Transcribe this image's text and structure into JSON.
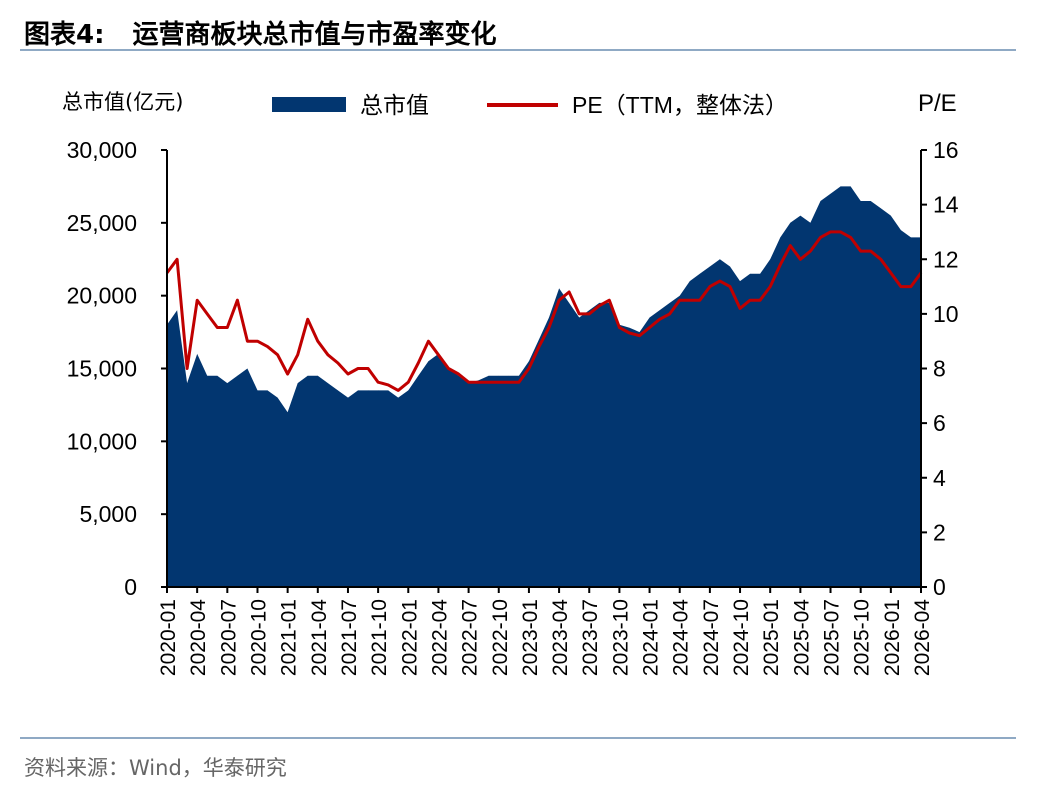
{
  "header": {
    "figure_label": "图表4:",
    "title": "运营商板块总市值与市盈率变化"
  },
  "footer": {
    "source": "资料来源：Wind，华泰研究"
  },
  "chart_data": {
    "type": "area+line",
    "title": "运营商板块总市值与市盈率变化",
    "left_axis": {
      "label": "总市值(亿元)",
      "range": [
        0,
        30000
      ],
      "ticks": [
        "0",
        "5,000",
        "10,000",
        "15,000",
        "20,000",
        "25,000",
        "30,000"
      ],
      "tick_values": [
        0,
        5000,
        10000,
        15000,
        20000,
        25000,
        30000
      ]
    },
    "right_axis": {
      "label": "P/E",
      "range": [
        0,
        16
      ],
      "ticks": [
        "0",
        "2",
        "4",
        "6",
        "8",
        "10",
        "12",
        "14",
        "16"
      ],
      "tick_values": [
        0,
        2,
        4,
        6,
        8,
        10,
        12,
        14,
        16
      ]
    },
    "x_ticks": [
      "2020-01",
      "2020-04",
      "2020-07",
      "2020-10",
      "2021-01",
      "2021-04",
      "2021-07",
      "2021-10",
      "2022-01",
      "2022-04",
      "2022-07",
      "2022-10",
      "2023-01",
      "2023-04",
      "2023-07",
      "2023-10",
      "2024-01",
      "2024-04",
      "2024-07",
      "2024-10",
      "2025-01",
      "2025-04",
      "2025-07",
      "2025-10",
      "2026-01",
      "2026-04"
    ],
    "x_start": "2020-01",
    "x_end": "2026-04",
    "x_step": "month",
    "legend": {
      "position": "top",
      "entries": [
        "总市值",
        "PE（TTM，整体法）"
      ]
    },
    "colors": {
      "market_cap": "#023670",
      "pe": "#C00000"
    },
    "series": [
      {
        "name": "总市值",
        "axis": "left",
        "type": "area",
        "values": [
          18000,
          19000,
          14000,
          16000,
          14500,
          14500,
          14000,
          14500,
          15000,
          13500,
          13500,
          13000,
          12000,
          14000,
          14500,
          14500,
          14000,
          13500,
          13000,
          13500,
          13500,
          13500,
          13500,
          13000,
          13500,
          14500,
          15500,
          16000,
          15000,
          14500,
          14000,
          14200,
          14500,
          14500,
          14500,
          14500,
          15500,
          17000,
          18500,
          20500,
          19500,
          18500,
          19000,
          19500,
          19500,
          18000,
          17800,
          17500,
          18500,
          19000,
          19500,
          20000,
          21000,
          21500,
          22000,
          22500,
          22000,
          21000,
          21500,
          21500,
          22500,
          24000,
          25000,
          25500,
          25000,
          26500,
          27000,
          27500,
          27500,
          26500,
          26500,
          26000,
          25500,
          24500,
          24000,
          24000
        ]
      },
      {
        "name": "PE（TTM，整体法）",
        "axis": "right",
        "type": "line",
        "values": [
          11.5,
          12,
          8.0,
          10.5,
          10,
          9.5,
          9.5,
          10.5,
          9.0,
          9.0,
          8.8,
          8.5,
          7.8,
          8.5,
          9.8,
          9.0,
          8.5,
          8.2,
          7.8,
          8.0,
          8.0,
          7.5,
          7.4,
          7.2,
          7.5,
          8.2,
          9.0,
          8.5,
          8.0,
          7.8,
          7.5,
          7.5,
          7.5,
          7.5,
          7.5,
          7.5,
          8.0,
          8.8,
          9.5,
          10.5,
          10.8,
          10.0,
          10.0,
          10.3,
          10.5,
          9.5,
          9.3,
          9.2,
          9.5,
          9.8,
          10.0,
          10.5,
          10.5,
          10.5,
          11.0,
          11.2,
          11.0,
          10.2,
          10.5,
          10.5,
          11.0,
          11.8,
          12.5,
          12.0,
          12.3,
          12.8,
          13.0,
          13.0,
          12.8,
          12.3,
          12.3,
          12.0,
          11.5,
          11.0,
          11.0,
          11.5
        ]
      }
    ]
  }
}
